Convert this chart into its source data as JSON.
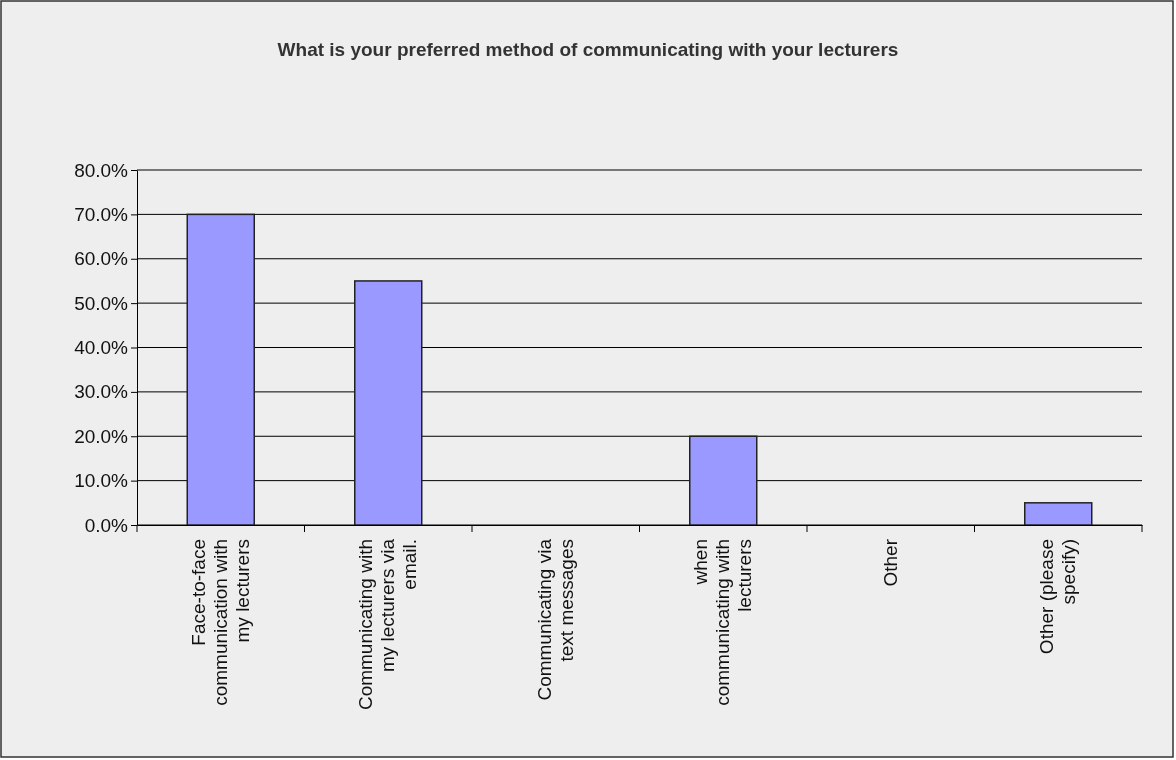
{
  "chart_data": {
    "type": "bar",
    "title": "What is your preferred method of communicating with your lecturers",
    "categories": [
      "Face-to-face communication with my lecturers",
      "Communicating with my lecturers via email.",
      "Communicating via text messages",
      "when communicating with lecturers",
      "Other",
      "Other (please specify)"
    ],
    "values": [
      70,
      55,
      0,
      20,
      0,
      5
    ],
    "color": "#9999ff",
    "ylim": [
      0,
      80
    ],
    "yticks": [
      {
        "value": 0,
        "label": "0.0%"
      },
      {
        "value": 10,
        "label": "10.0%"
      },
      {
        "value": 20,
        "label": "20.0%"
      },
      {
        "value": 30,
        "label": "30.0%"
      },
      {
        "value": 40,
        "label": "40.0%"
      },
      {
        "value": 50,
        "label": "50.0%"
      },
      {
        "value": 60,
        "label": "60.0%"
      },
      {
        "value": 70,
        "label": "70.0%"
      },
      {
        "value": 80,
        "label": "80.0%"
      }
    ],
    "grid": "y"
  }
}
